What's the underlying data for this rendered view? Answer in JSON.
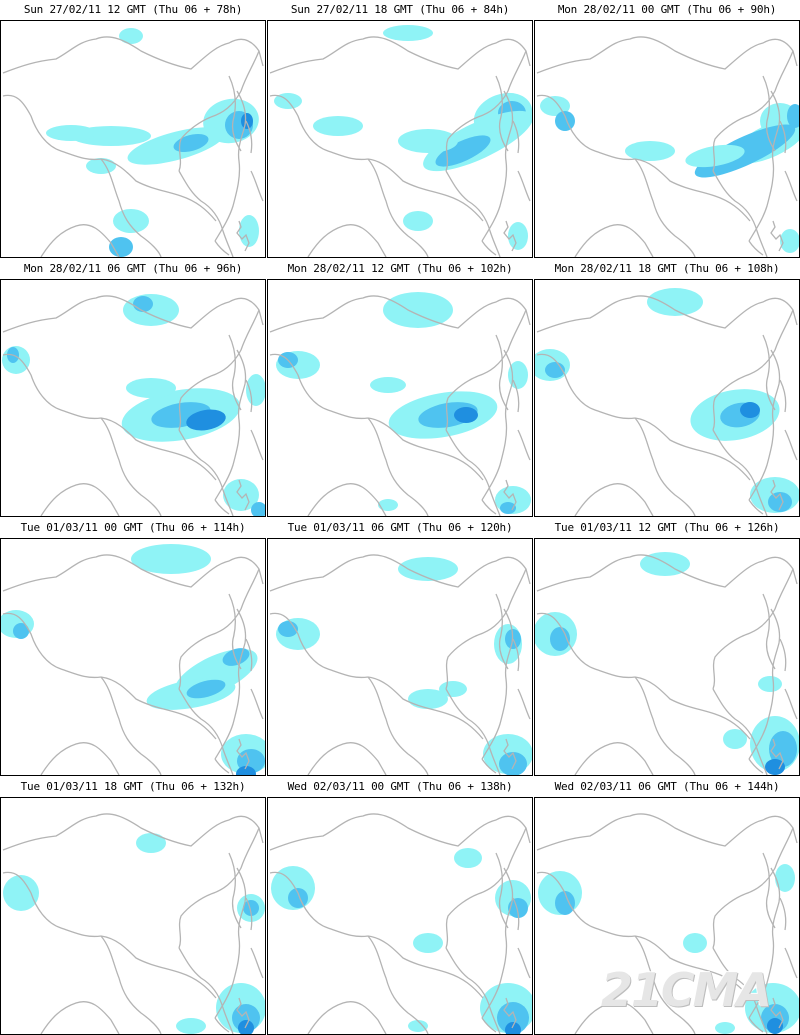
{
  "colors": {
    "light_precip": "#8ff3f6",
    "medium_precip": "#4fc3f0",
    "heavy_precip": "#1f8fe0",
    "very_heavy_precip": "#1a5fd0",
    "border_lines": "#b4b4b4",
    "frame": "#000000"
  },
  "panels": [
    {
      "label": "Sun 27/02/11 12 GMT (Thu 06 + 78h)"
    },
    {
      "label": "Sun 27/02/11 18 GMT (Thu 06 + 84h)"
    },
    {
      "label": "Mon 28/02/11 00 GMT (Thu 06 + 90h)"
    },
    {
      "label": "Mon 28/02/11 06 GMT (Thu 06 + 96h)"
    },
    {
      "label": "Mon 28/02/11 12 GMT (Thu 06 + 102h)"
    },
    {
      "label": "Mon 28/02/11 18 GMT (Thu 06 + 108h)"
    },
    {
      "label": "Tue 01/03/11 00 GMT (Thu 06 + 114h)"
    },
    {
      "label": "Tue 01/03/11 06 GMT (Thu 06 + 120h)"
    },
    {
      "label": "Tue 01/03/11 12 GMT (Thu 06 + 126h)"
    },
    {
      "label": "Tue 01/03/11 18 GMT (Thu 06 + 132h)"
    },
    {
      "label": "Wed 02/03/11 00 GMT (Thu 06 + 138h)"
    },
    {
      "label": "Wed 02/03/11 06 GMT (Thu 06 + 144h)"
    }
  ],
  "watermark": "21CMA"
}
